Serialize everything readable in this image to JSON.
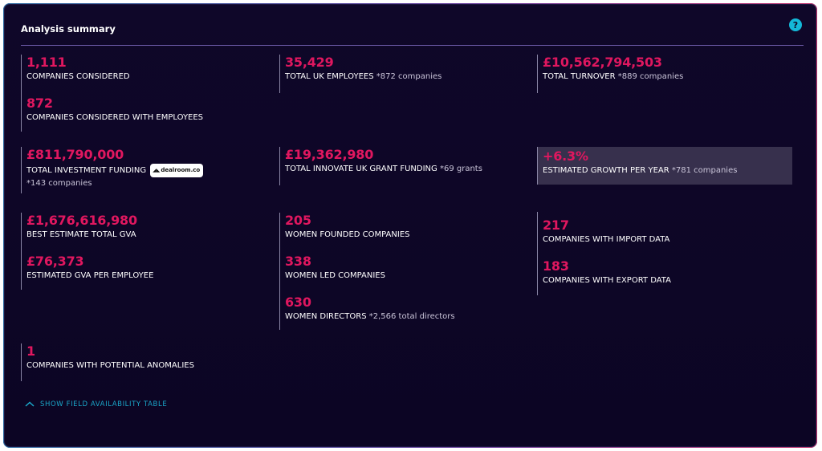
{
  "title": "Analysis summary",
  "help_icon": "?",
  "colors": {
    "background": "#0d0626",
    "value": "#e0175f",
    "label": "#ffffff",
    "accent": "#1aa7c9",
    "highlight": "#37304d"
  },
  "col1": {
    "companies_considered": {
      "value": "1,111",
      "label": "COMPANIES CONSIDERED"
    },
    "companies_with_employees": {
      "value": "872",
      "label": "COMPANIES CONSIDERED WITH EMPLOYEES"
    },
    "investment": {
      "value": "£811,790,000",
      "label": "TOTAL INVESTMENT FUNDING",
      "badge": "dealroom.co",
      "note": "*143 companies"
    },
    "gva_total": {
      "value": "£1,676,616,980",
      "label": "BEST ESTIMATE TOTAL GVA"
    },
    "gva_per_employee": {
      "value": "£76,373",
      "label": "ESTIMATED GVA PER EMPLOYEE"
    },
    "anomalies": {
      "value": "1",
      "label": "COMPANIES WITH POTENTIAL ANOMALIES"
    }
  },
  "col2": {
    "employees": {
      "value": "35,429",
      "label": "TOTAL UK EMPLOYEES",
      "note": "*872 companies"
    },
    "grant": {
      "value": "£19,362,980",
      "label": "TOTAL INNOVATE UK GRANT FUNDING",
      "note": "*69 grants"
    },
    "women_founded": {
      "value": "205",
      "label": "WOMEN FOUNDED COMPANIES"
    },
    "women_led": {
      "value": "338",
      "label": "WOMEN LED COMPANIES"
    },
    "women_directors": {
      "value": "630",
      "label": "WOMEN DIRECTORS",
      "note": "*2,566 total directors"
    }
  },
  "col3": {
    "turnover": {
      "value": "£10,562,794,503",
      "label": "TOTAL TURNOVER",
      "note": "*889 companies"
    },
    "growth": {
      "value": "+6.3%",
      "label": "ESTIMATED GROWTH PER YEAR",
      "note": "*781 companies"
    },
    "import": {
      "value": "217",
      "label": "COMPANIES WITH IMPORT DATA"
    },
    "export": {
      "value": "183",
      "label": "COMPANIES WITH EXPORT DATA"
    }
  },
  "toggle_label": "SHOW FIELD AVAILABILITY TABLE",
  "icons": {
    "help": "question-icon",
    "toggle": "chevron-up-icon"
  }
}
